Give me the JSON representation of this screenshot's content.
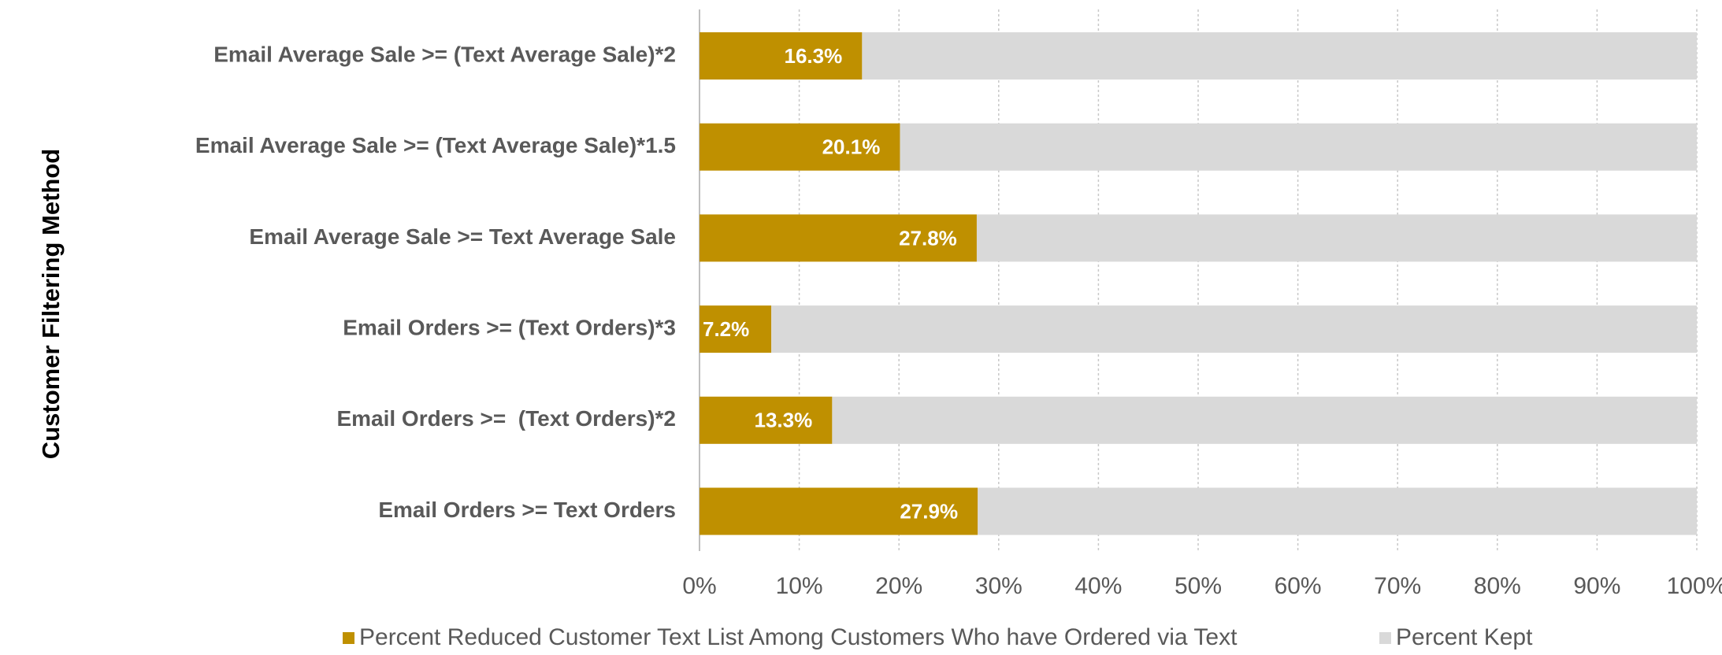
{
  "chart_data": {
    "type": "stacked-bar-horizontal",
    "y_label": "Customer Filtering Method",
    "categories": [
      "Email Average Sale >= (Text Average Sale)*2",
      "Email Average Sale >= (Text Average Sale)*1.5",
      "Email Average Sale >= Text Average Sale",
      "Email Orders >= (Text Orders)*3",
      "Email Orders >=  (Text Orders)*2",
      "Email Orders >= Text Orders"
    ],
    "series": [
      {
        "name": "Percent Reduced Customer Text List Among Customers Who have Ordered via Text",
        "color": "#bf9000",
        "values": [
          16.3,
          20.1,
          27.8,
          7.2,
          13.3,
          27.9
        ],
        "value_labels": [
          "16.3%",
          "20.1%",
          "27.8%",
          "7.2%",
          "13.3%",
          "27.9%"
        ]
      },
      {
        "name": "Percent Kept",
        "color": "#d9d9d9",
        "values": [
          83.7,
          79.9,
          72.2,
          92.8,
          86.7,
          72.1
        ]
      }
    ],
    "xlim": [
      0,
      100
    ],
    "xticks": [
      {
        "value": 0,
        "label": "0%"
      },
      {
        "value": 10,
        "label": "10%"
      },
      {
        "value": 20,
        "label": "20%"
      },
      {
        "value": 30,
        "label": "30%"
      },
      {
        "value": 40,
        "label": "40%"
      },
      {
        "value": 50,
        "label": "50%"
      },
      {
        "value": 60,
        "label": "60%"
      },
      {
        "value": 70,
        "label": "70%"
      },
      {
        "value": 80,
        "label": "80%"
      },
      {
        "value": 90,
        "label": "90%"
      },
      {
        "value": 100,
        "label": "100%"
      }
    ],
    "grid": true,
    "legend": "bottom"
  }
}
